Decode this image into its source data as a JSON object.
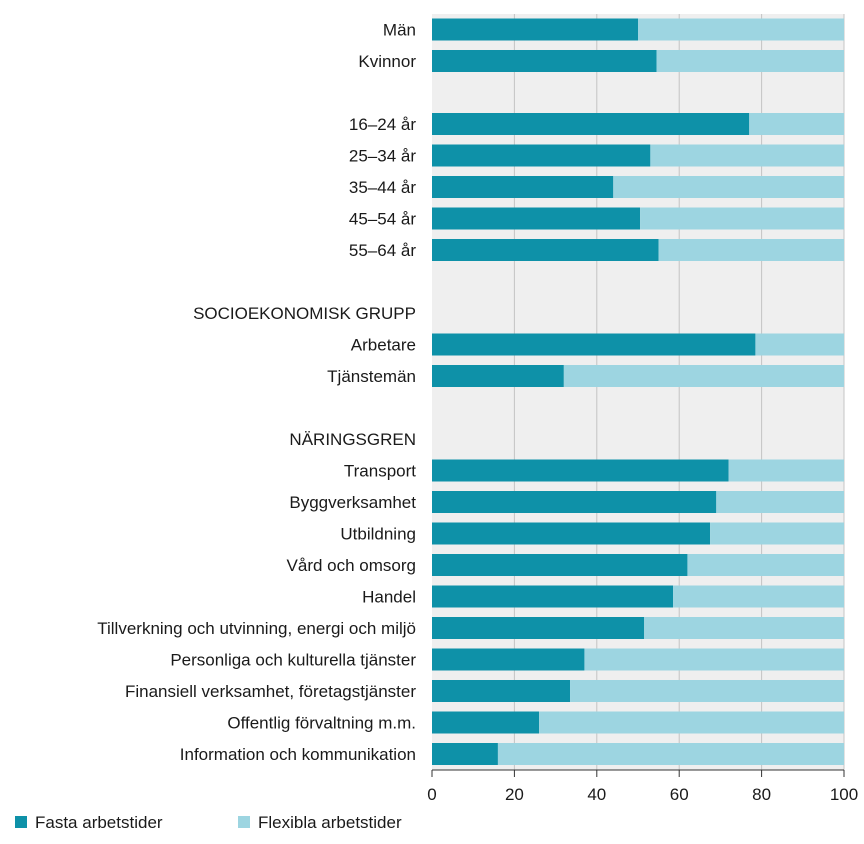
{
  "chart_data": {
    "type": "bar",
    "orientation": "horizontal",
    "stacked": true,
    "xlim": [
      0,
      100
    ],
    "xticks": [
      0,
      20,
      40,
      60,
      80,
      100
    ],
    "grid": true,
    "legend_position": "bottom-left",
    "series": [
      {
        "name": "Fasta arbetstider",
        "color": "#0e91a8"
      },
      {
        "name": "Flexibla arbetstider",
        "color": "#9dd5e1"
      }
    ],
    "rows": [
      {
        "label": "Män",
        "value": 50
      },
      {
        "label": "Kvinnor",
        "value": 54.5
      },
      {
        "label": "",
        "value": null
      },
      {
        "label": "16–24 år",
        "value": 77
      },
      {
        "label": "25–34 år",
        "value": 53
      },
      {
        "label": "35–44 år",
        "value": 44
      },
      {
        "label": "45–54 år",
        "value": 50.5
      },
      {
        "label": "55–64 år",
        "value": 55
      },
      {
        "label": "",
        "value": null
      },
      {
        "label": "SOCIOEKONOMISK GRUPP",
        "value": null,
        "heading": true
      },
      {
        "label": "Arbetare",
        "value": 78.5
      },
      {
        "label": "Tjänstemän",
        "value": 32
      },
      {
        "label": "",
        "value": null
      },
      {
        "label": "NÄRINGSGREN",
        "value": null,
        "heading": true
      },
      {
        "label": "Transport",
        "value": 72
      },
      {
        "label": "Byggverksamhet",
        "value": 69
      },
      {
        "label": "Utbildning",
        "value": 67.5
      },
      {
        "label": "Vård och omsorg",
        "value": 62
      },
      {
        "label": "Handel",
        "value": 58.5
      },
      {
        "label": "Tillverkning och utvinning, energi och miljö",
        "value": 51.5
      },
      {
        "label": "Personliga och kulturella tjänster",
        "value": 37
      },
      {
        "label": "Finansiell verksamhet, företagstjänster",
        "value": 33.5
      },
      {
        "label": "Offentlig förvaltning m.m.",
        "value": 26
      },
      {
        "label": "Information och kommunikation",
        "value": 16
      }
    ]
  },
  "colors": {
    "plot_background": "#efefef",
    "grid": "#c4c4c4",
    "axis": "#333333"
  }
}
